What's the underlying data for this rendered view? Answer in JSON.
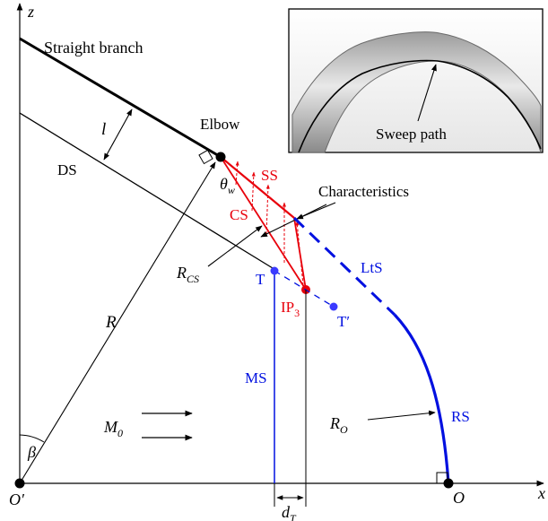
{
  "labels": {
    "axis_z": "z",
    "axis_x": "x",
    "origin_o_prime": "O′",
    "origin_o": "O",
    "straight_branch": "Straight branch",
    "elbow": "Elbow",
    "ds": "DS",
    "l": "l",
    "theta": "θ",
    "theta_sub": "w",
    "ss": "SS",
    "cs": "CS",
    "characteristics": "Characteristics",
    "r_cs": "R",
    "r_cs_sub": "CS",
    "t": "T",
    "t_prime": "T′",
    "ip": "IP",
    "ip_sub": "3",
    "lts": "LtS",
    "r": "R",
    "ms": "MS",
    "m": "M",
    "m_sub": "0",
    "beta": "β",
    "r_o": "R",
    "r_o_sub": "O",
    "rs": "RS",
    "d": "d",
    "d_sub": "T",
    "sweep_path": "Sweep path"
  },
  "colors": {
    "black": "#000000",
    "red": "#e8000b",
    "blue": "#0010e0",
    "blue_point": "#3a3aff"
  }
}
